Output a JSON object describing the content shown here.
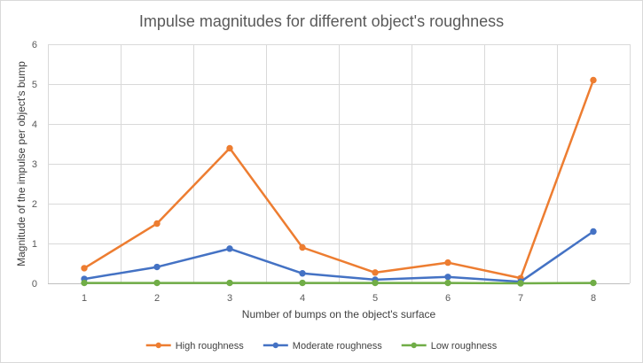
{
  "chart_data": {
    "type": "line",
    "title": "Impulse magnitudes for different object's roughness",
    "xlabel": "Number  of bumps on the object's surface",
    "ylabel": "Magnitude of the impulse per object's bump",
    "categories": [
      "1",
      "2",
      "3",
      "4",
      "5",
      "6",
      "7",
      "8"
    ],
    "ylim": [
      0,
      6
    ],
    "yticks": [
      "0",
      "1",
      "2",
      "3",
      "4",
      "5",
      "6"
    ],
    "grid": "vertical and horizontal",
    "legend_position": "bottom",
    "series": [
      {
        "name": "High roughness",
        "color": "#ED7D31",
        "values": [
          0.38,
          1.5,
          3.39,
          0.9,
          0.27,
          0.52,
          0.13,
          5.1
        ]
      },
      {
        "name": "Moderate roughness",
        "color": "#4472C4",
        "values": [
          0.11,
          0.41,
          0.87,
          0.25,
          0.09,
          0.16,
          0.04,
          1.3
        ]
      },
      {
        "name": "Low roughness",
        "color": "#70AD47",
        "values": [
          0.01,
          0.01,
          0.01,
          0.01,
          0.01,
          0.01,
          0.0,
          0.01
        ]
      }
    ]
  }
}
